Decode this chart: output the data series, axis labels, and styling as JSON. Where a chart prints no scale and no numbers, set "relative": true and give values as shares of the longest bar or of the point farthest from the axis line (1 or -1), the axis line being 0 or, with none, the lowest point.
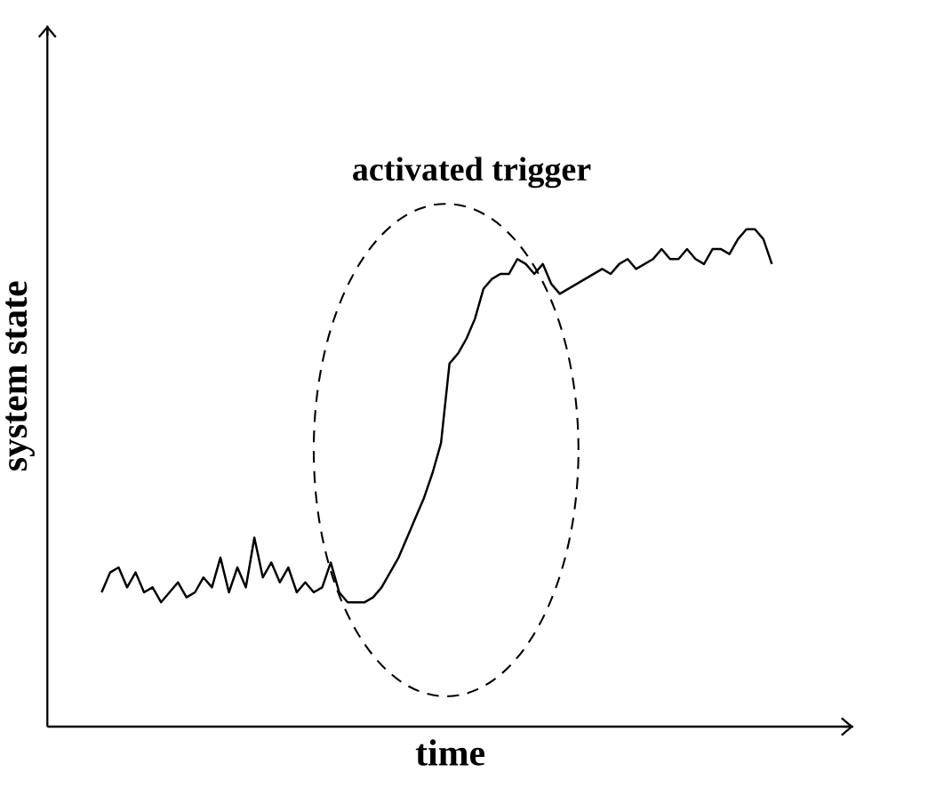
{
  "chart_data": {
    "type": "line",
    "xlabel": "time",
    "ylabel": "system state",
    "relative": true,
    "annotations": [
      "activated trigger"
    ],
    "categories": [
      null,
      null,
      null,
      null,
      null,
      null,
      null,
      null,
      null,
      null,
      null,
      null,
      null,
      null,
      null,
      null,
      null,
      null,
      null,
      null,
      null,
      null,
      null,
      null,
      null,
      null,
      null,
      null,
      null,
      null,
      null,
      null,
      null,
      null,
      null,
      null,
      null,
      null,
      null,
      null,
      null,
      null,
      null,
      null,
      null,
      null,
      null,
      null,
      null,
      null,
      null,
      null,
      null,
      null,
      null,
      null,
      null,
      null,
      null,
      null,
      null,
      null,
      null,
      null,
      null,
      null,
      null,
      null,
      null,
      null,
      null,
      null,
      null,
      null,
      null,
      null,
      null,
      null,
      null,
      null
    ],
    "series": [
      {
        "color": "#000000",
        "values": [
          0.27,
          0.31,
          0.32,
          0.28,
          0.31,
          0.27,
          0.28,
          0.25,
          0.27,
          0.29,
          0.26,
          0.27,
          0.3,
          0.28,
          0.34,
          0.27,
          0.32,
          0.28,
          0.38,
          0.3,
          0.33,
          0.29,
          0.32,
          0.27,
          0.29,
          0.27,
          0.28,
          0.33,
          0.27,
          0.25,
          0.25,
          0.25,
          0.26,
          0.28,
          0.31,
          0.34,
          0.38,
          0.42,
          0.46,
          0.51,
          0.57,
          0.73,
          0.75,
          0.78,
          0.82,
          0.88,
          0.9,
          0.91,
          0.91,
          0.94,
          0.93,
          0.91,
          0.93,
          0.89,
          0.87,
          0.88,
          0.89,
          0.9,
          0.91,
          0.92,
          0.91,
          0.93,
          0.94,
          0.92,
          0.93,
          0.94,
          0.96,
          0.94,
          0.94,
          0.96,
          0.94,
          0.93,
          0.96,
          0.96,
          0.95,
          0.98,
          1.0,
          1.0,
          0.98,
          0.93
        ]
      }
    ]
  }
}
